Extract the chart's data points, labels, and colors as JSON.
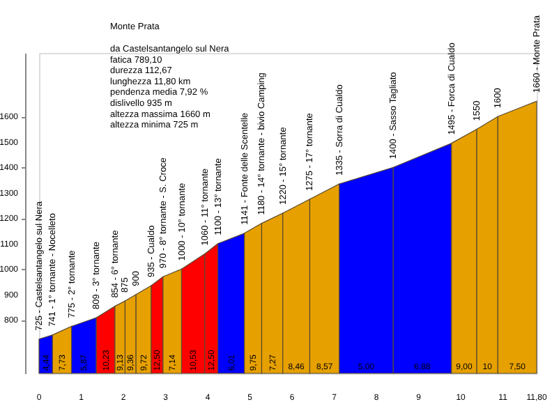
{
  "chart_data": {
    "type": "area",
    "title": "Monte Prata",
    "annotations": [
      "da Castelsantangelo sul Nera",
      "fatica 789,10",
      "durezza 112,67",
      "lunghezza 11,80 km",
      "pendenza media 7,92 %",
      "dislivello 935 m",
      "altezza massima 1660 m",
      "altezza minima 725 m",
      {
        "text": "725 - Castelsantangelo sul Nera",
        "x": 0,
        "y": 725
      },
      {
        "text": "741 - 1° tornante - Nocelleto",
        "x": 0.32,
        "y": 741
      },
      {
        "text": "775 - 2° tornante",
        "x": 0.77,
        "y": 775
      },
      {
        "text": "809 - 3° tornante",
        "x": 1.36,
        "y": 809
      },
      {
        "text": "854 - 6° tornante",
        "x": 1.8,
        "y": 854
      },
      {
        "text": "875",
        "x": 2.04,
        "y": 875
      },
      {
        "text": "900",
        "x": 2.3,
        "y": 900
      },
      {
        "text": "935 - Cualdo",
        "x": 2.66,
        "y": 935
      },
      {
        "text": "970 - 8° tornante - S. Croce",
        "x": 2.94,
        "y": 970
      },
      {
        "text": "1000 - 10° tornante",
        "x": 3.38,
        "y": 1000
      },
      {
        "text": "1060 - 11° tornante",
        "x": 3.93,
        "y": 1060
      },
      {
        "text": "1100 - 13° tornante",
        "x": 4.24,
        "y": 1100
      },
      {
        "text": "1141 - Fonte delle Scentelle",
        "x": 4.87,
        "y": 1141
      },
      {
        "text": "1180 - 14° tornante - bivio Camping",
        "x": 5.28,
        "y": 1180
      },
      {
        "text": "1220 - 15° tornante",
        "x": 5.78,
        "y": 1220
      },
      {
        "text": "1275 - 17° tornante",
        "x": 6.42,
        "y": 1275
      },
      {
        "text": "1335 - Sorra di Cualdo",
        "x": 7.12,
        "y": 1335
      },
      {
        "text": "1400 - Sasso Tagliato",
        "x": 8.4,
        "y": 1400
      },
      {
        "text": "1495 - Forca di Cualdo",
        "x": 9.78,
        "y": 1495
      },
      {
        "text": "1550",
        "x": 10.38,
        "y": 1550
      },
      {
        "text": "1600",
        "x": 10.88,
        "y": 1600
      },
      {
        "text": "1660 - Monte Prata",
        "x": 11.8,
        "y": 1660
      },
      {
        "text": "4,44",
        "x": 0.16,
        "y": 600
      },
      {
        "text": "7,73",
        "x": 0.545,
        "y": 600
      },
      {
        "text": "5,87",
        "x": 1.065,
        "y": 600
      },
      {
        "text": "10,23",
        "x": 1.58,
        "y": 600
      },
      {
        "text": "9,13",
        "x": 1.92,
        "y": 600
      },
      {
        "text": "9,36",
        "x": 2.17,
        "y": 600
      },
      {
        "text": "9,72",
        "x": 2.48,
        "y": 600
      },
      {
        "text": "12,50",
        "x": 2.8,
        "y": 600
      },
      {
        "text": "7,14",
        "x": 3.16,
        "y": 600
      },
      {
        "text": "10,53",
        "x": 3.655,
        "y": 600
      },
      {
        "text": "12,50",
        "x": 4.085,
        "y": 600
      },
      {
        "text": "6,01",
        "x": 4.555,
        "y": 600
      },
      {
        "text": "9,75",
        "x": 5.075,
        "y": 600
      },
      {
        "text": "7,27",
        "x": 5.53,
        "y": 600
      },
      {
        "text": "8,46",
        "x": 6.1,
        "y": 600
      },
      {
        "text": "8,57",
        "x": 6.77,
        "y": 600
      },
      {
        "text": "5,00",
        "x": 7.76,
        "y": 600
      },
      {
        "text": "6,88",
        "x": 9.09,
        "y": 600
      },
      {
        "text": "9,00",
        "x": 10.08,
        "y": 600
      },
      {
        "text": "10",
        "x": 10.63,
        "y": 600
      },
      {
        "text": "7,50",
        "x": 11.34,
        "y": 600
      }
    ],
    "xlim": [
      0,
      11.8
    ],
    "xticks": [
      0,
      1,
      2,
      3,
      4,
      5,
      6,
      7,
      8,
      9,
      10,
      11,
      {
        "value": 11.8,
        "label": "11,80"
      }
    ],
    "ylim": [
      590,
      1850
    ],
    "yticks": [
      800,
      900,
      1000,
      1100,
      1200,
      1300,
      1400,
      1500,
      1600
    ],
    "grid": false,
    "series": [
      {
        "color": "#0000ff",
        "x": [
          0,
          0.32
        ],
        "values": [
          725,
          741
        ]
      },
      {
        "color": "#e6a000",
        "x": [
          0.32,
          0.77
        ],
        "values": [
          741,
          775
        ]
      },
      {
        "color": "#0000ff",
        "x": [
          0.77,
          1.36
        ],
        "values": [
          775,
          809
        ]
      },
      {
        "color": "#ff0000",
        "x": [
          1.36,
          1.8
        ],
        "values": [
          809,
          854
        ]
      },
      {
        "color": "#e6a000",
        "x": [
          1.8,
          2.04
        ],
        "values": [
          854,
          875
        ]
      },
      {
        "color": "#e6a000",
        "x": [
          2.04,
          2.3
        ],
        "values": [
          875,
          900
        ]
      },
      {
        "color": "#e6a000",
        "x": [
          2.3,
          2.66
        ],
        "values": [
          900,
          935
        ]
      },
      {
        "color": "#ff0000",
        "x": [
          2.66,
          2.94
        ],
        "values": [
          935,
          970
        ]
      },
      {
        "color": "#e6a000",
        "x": [
          2.94,
          3.38
        ],
        "values": [
          970,
          1000
        ]
      },
      {
        "color": "#ff0000",
        "x": [
          3.38,
          3.93
        ],
        "values": [
          1000,
          1060
        ]
      },
      {
        "color": "#ff0000",
        "x": [
          3.93,
          4.24
        ],
        "values": [
          1060,
          1100
        ]
      },
      {
        "color": "#0000ff",
        "x": [
          4.24,
          4.87
        ],
        "values": [
          1100,
          1141
        ]
      },
      {
        "color": "#e6a000",
        "x": [
          4.87,
          5.28
        ],
        "values": [
          1141,
          1180
        ]
      },
      {
        "color": "#e6a000",
        "x": [
          5.28,
          5.78
        ],
        "values": [
          1180,
          1220
        ]
      },
      {
        "color": "#e6a000",
        "x": [
          5.78,
          6.42
        ],
        "values": [
          1220,
          1275
        ]
      },
      {
        "color": "#e6a000",
        "x": [
          6.42,
          7.12
        ],
        "values": [
          1275,
          1335
        ]
      },
      {
        "color": "#0000ff",
        "x": [
          7.12,
          8.4
        ],
        "values": [
          1335,
          1400
        ]
      },
      {
        "color": "#0000ff",
        "x": [
          8.4,
          9.78
        ],
        "values": [
          1400,
          1495
        ]
      },
      {
        "color": "#e6a000",
        "x": [
          9.78,
          10.38
        ],
        "values": [
          1495,
          1550
        ]
      },
      {
        "color": "#e6a000",
        "x": [
          10.38,
          10.88
        ],
        "values": [
          1550,
          1600
        ]
      },
      {
        "color": "#e6a000",
        "x": [
          10.88,
          11.8
        ],
        "values": [
          1600,
          1660
        ]
      }
    ]
  }
}
